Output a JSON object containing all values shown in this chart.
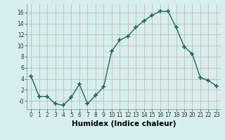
{
  "x": [
    0,
    1,
    2,
    3,
    4,
    5,
    6,
    7,
    8,
    9,
    10,
    11,
    12,
    13,
    14,
    15,
    16,
    17,
    18,
    19,
    20,
    21,
    22,
    23
  ],
  "y": [
    4.5,
    0.8,
    0.8,
    -0.5,
    -0.8,
    0.7,
    3.0,
    -0.5,
    1.0,
    2.5,
    9.0,
    11.0,
    11.7,
    13.3,
    14.5,
    15.5,
    16.2,
    16.2,
    13.3,
    9.8,
    8.5,
    4.2,
    3.7,
    2.7
  ],
  "line_color": "#1a6b5a",
  "marker": "+",
  "marker_size": 4,
  "bg_color": "#d6eeee",
  "grid_color": "#c8b8b8",
  "xlabel": "Humidex (Indice chaleur)",
  "xlim": [
    -0.5,
    23.5
  ],
  "ylim": [
    -1.5,
    17.5
  ],
  "yticks": [
    0,
    2,
    4,
    6,
    8,
    10,
    12,
    14,
    16
  ],
  "ytick_labels": [
    "-0",
    "2",
    "4",
    "6",
    "8",
    "10",
    "12",
    "14",
    "16"
  ],
  "xticks": [
    0,
    1,
    2,
    3,
    4,
    5,
    6,
    7,
    8,
    9,
    10,
    11,
    12,
    13,
    14,
    15,
    16,
    17,
    18,
    19,
    20,
    21,
    22,
    23
  ],
  "tick_fontsize": 5.5,
  "xlabel_fontsize": 7.5,
  "line_width": 1.0,
  "marker_linewidth": 1.2
}
